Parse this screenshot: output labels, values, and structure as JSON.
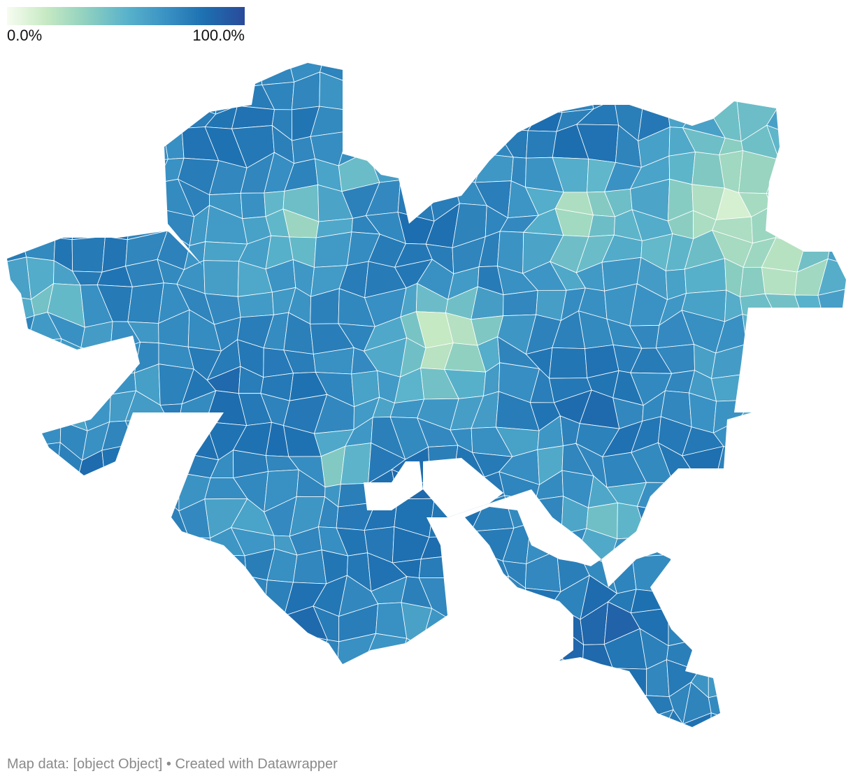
{
  "legend": {
    "min_label": "0.0%",
    "max_label": "100.0%",
    "color_stops": [
      "#f7fcf0",
      "#c6e9c3",
      "#8fd0c0",
      "#5ab3cb",
      "#3a92c4",
      "#1d6fb0",
      "#2a4a9a"
    ]
  },
  "map": {
    "type": "choropleth",
    "value_range": [
      0,
      100
    ],
    "value_unit": "%",
    "region_count_approx": 400
  },
  "footer": {
    "text": "Map data: [object Object] • Created with Datawrapper"
  }
}
